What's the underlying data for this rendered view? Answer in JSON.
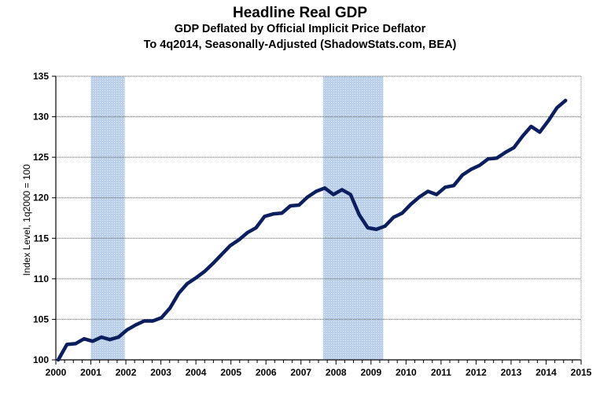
{
  "chart_data": {
    "type": "line",
    "title": "Headline Real GDP",
    "subtitle": "GDP Deflated by Official Implicit Price Deflator",
    "subtitle2": "To 4q2014, Seasonally-Adjusted (ShadowStats.com, BEA)",
    "xlabel": "",
    "ylabel": "Index Level, 1q2000 = 100",
    "ylim": [
      100,
      135
    ],
    "xlim": [
      2000,
      2015
    ],
    "yticks": [
      "100",
      "105",
      "110",
      "115",
      "120",
      "125",
      "130",
      "135"
    ],
    "xticks": [
      "2000",
      "2001",
      "2002",
      "2003",
      "2004",
      "2005",
      "2006",
      "2007",
      "2008",
      "2009",
      "2010",
      "2011",
      "2012",
      "2013",
      "2014",
      "2015"
    ],
    "grid": true,
    "line_color": "#0b1f5e",
    "recession_color": "#b9cfea",
    "recessions": [
      [
        2001.0,
        2001.97
      ],
      [
        2007.63,
        2009.35
      ]
    ],
    "series": [
      {
        "name": "Headline Real GDP",
        "x_start": "1q2000",
        "frequency": "quarterly",
        "values": [
          100.0,
          101.9,
          102.0,
          102.6,
          102.3,
          102.8,
          102.5,
          102.8,
          103.7,
          104.3,
          104.8,
          104.8,
          105.2,
          106.4,
          108.2,
          109.4,
          110.1,
          110.9,
          111.9,
          113.0,
          114.1,
          114.8,
          115.7,
          116.3,
          117.7,
          118.0,
          118.1,
          119.0,
          119.1,
          120.1,
          120.8,
          121.2,
          120.4,
          121.0,
          120.4,
          117.9,
          116.3,
          116.1,
          116.5,
          117.6,
          118.1,
          119.2,
          120.1,
          120.8,
          120.4,
          121.3,
          121.5,
          122.8,
          123.5,
          124.0,
          124.8,
          124.9,
          125.6,
          126.2,
          127.6,
          128.8,
          128.1,
          129.5,
          131.1,
          132.0
        ]
      }
    ]
  }
}
